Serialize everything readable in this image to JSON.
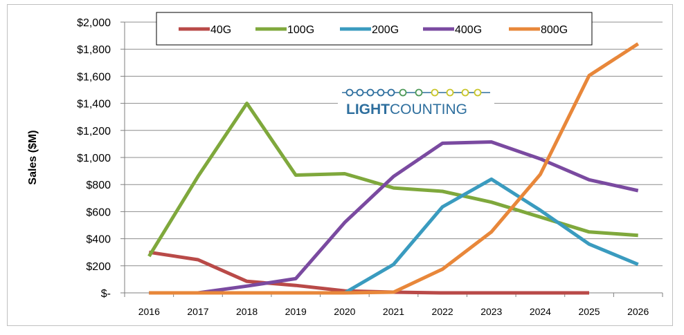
{
  "chart_data": {
    "type": "line",
    "title": "",
    "xlabel": "",
    "ylabel": "Sales ($M)",
    "ylim": [
      0,
      2000
    ],
    "yticks": [
      0,
      200,
      400,
      600,
      800,
      1000,
      1200,
      1400,
      1600,
      1800,
      2000
    ],
    "ytick_labels": [
      "$-",
      "$200",
      "$400",
      "$600",
      "$800",
      "$1,000",
      "$1,200",
      "$1,400",
      "$1,600",
      "$1,800",
      "$2,000"
    ],
    "categories": [
      "2016",
      "2017",
      "2018",
      "2019",
      "2020",
      "2021",
      "2022",
      "2023",
      "2024",
      "2025",
      "2026"
    ],
    "grid": true,
    "legend_position": "top",
    "series": [
      {
        "name": "40G",
        "color": "#b94a48",
        "values": [
          300,
          245,
          85,
          55,
          15,
          5,
          0,
          0,
          0,
          0,
          null
        ]
      },
      {
        "name": "100G",
        "color": "#7fa83c",
        "values": [
          270,
          860,
          1400,
          870,
          880,
          775,
          750,
          670,
          560,
          450,
          425
        ]
      },
      {
        "name": "200G",
        "color": "#3a9bbf",
        "values": [
          0,
          0,
          0,
          0,
          0,
          210,
          635,
          840,
          610,
          360,
          210
        ]
      },
      {
        "name": "400G",
        "color": "#7a4aa0",
        "values": [
          0,
          0,
          50,
          105,
          520,
          860,
          1105,
          1115,
          990,
          835,
          755
        ]
      },
      {
        "name": "800G",
        "color": "#e8873a",
        "values": [
          0,
          0,
          0,
          0,
          0,
          5,
          175,
          450,
          875,
          1605,
          1840
        ]
      }
    ]
  },
  "watermark": {
    "part1": "LIGHT",
    "part2": "COUNTING",
    "color_dark": "#2e6f9e",
    "color_accent": "#c9c62a"
  }
}
